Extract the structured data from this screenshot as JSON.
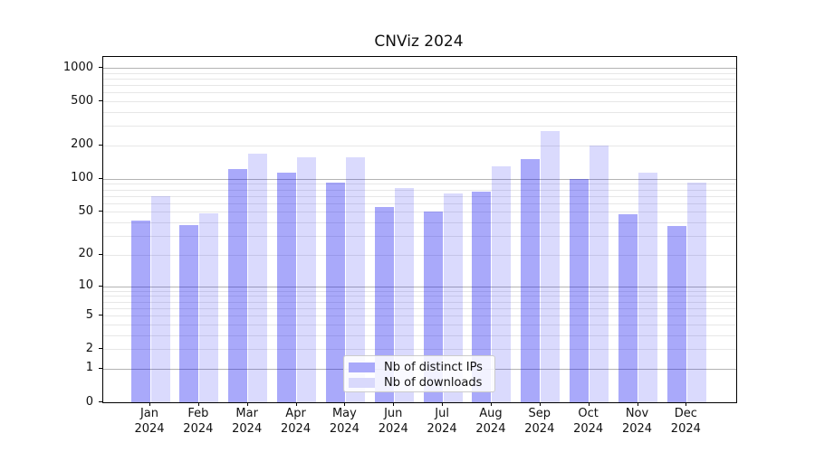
{
  "title": "CNViz 2024",
  "chart_data": {
    "type": "bar",
    "title": "CNViz 2024",
    "y_scale": "log(value+1)",
    "grid": true,
    "legend_position": "bottom-center",
    "months": [
      "Jan",
      "Feb",
      "Mar",
      "Apr",
      "May",
      "Jun",
      "Jul",
      "Aug",
      "Sep",
      "Oct",
      "Nov",
      "Dec"
    ],
    "year": "2024",
    "categories": [
      "Jan 2024",
      "Feb 2024",
      "Mar 2024",
      "Apr 2024",
      "May 2024",
      "Jun 2024",
      "Jul 2024",
      "Aug 2024",
      "Sep 2024",
      "Oct 2024",
      "Nov 2024",
      "Dec 2024"
    ],
    "series": [
      {
        "name": "Nb of distinct IPs",
        "color": "rgba(10,10,240,0.35)",
        "solid_color": "#a9a9fa",
        "values": [
          42,
          38,
          123,
          114,
          93,
          55,
          50,
          77,
          152,
          100,
          48,
          37
        ]
      },
      {
        "name": "Nb of downloads",
        "color": "rgba(10,10,240,0.15)",
        "solid_color": "#d9d9fc",
        "values": [
          70,
          49,
          168,
          158,
          157,
          83,
          74,
          130,
          270,
          200,
          113,
          92
        ]
      }
    ],
    "y_ticks": [
      0,
      1,
      2,
      5,
      10,
      20,
      50,
      100,
      200,
      500,
      1000
    ],
    "ylim": [
      0,
      1250
    ],
    "colors": {
      "grid_major": "#b3b3b3",
      "grid_minor": "#e7e7e7",
      "axis": "#000000"
    }
  }
}
